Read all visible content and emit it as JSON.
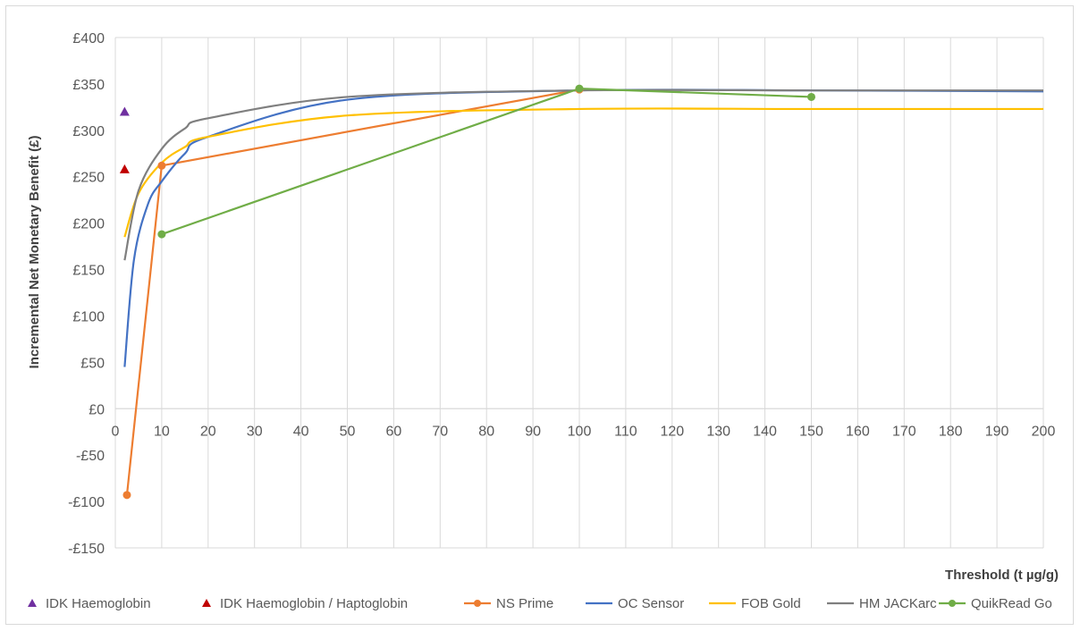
{
  "chart_data": {
    "type": "line",
    "title": "",
    "xlabel": "Threshold (t µg/g)",
    "ylabel": "Incremental Net Monetary Benefit (£)",
    "xlim": [
      0,
      200
    ],
    "ylim": [
      -150,
      400
    ],
    "x_ticks": [
      0,
      10,
      20,
      30,
      40,
      50,
      60,
      70,
      80,
      90,
      100,
      110,
      120,
      130,
      140,
      150,
      160,
      170,
      180,
      190,
      200
    ],
    "y_ticks": [
      -150,
      -100,
      -50,
      0,
      50,
      100,
      150,
      200,
      250,
      300,
      350,
      400
    ],
    "y_tick_labels": [
      "-£150",
      "-£100",
      "-£50",
      "£0",
      "£50",
      "£100",
      "£150",
      "£200",
      "£250",
      "£300",
      "£350",
      "£400"
    ],
    "grid": "vertical",
    "legend_position": "bottom",
    "series": [
      {
        "name": "IDK Haemoglobin",
        "color": "#7030a0",
        "style": "triangle-marker",
        "points": [
          [
            2,
            320
          ]
        ]
      },
      {
        "name": "IDK Haemoglobin / Haptoglobin",
        "color": "#c00000",
        "style": "triangle-marker",
        "points": [
          [
            2,
            258
          ]
        ]
      },
      {
        "name": "NS Prime",
        "color": "#ed7d31",
        "style": "line-markers",
        "points": [
          [
            2.5,
            -93
          ],
          [
            10,
            262
          ],
          [
            100,
            344
          ]
        ]
      },
      {
        "name": "OC Sensor",
        "color": "#4472c4",
        "style": "smooth-line",
        "points": [
          [
            2,
            45
          ],
          [
            4,
            160
          ],
          [
            7,
            220
          ],
          [
            10,
            245
          ],
          [
            15,
            275
          ],
          [
            20,
            293
          ],
          [
            50,
            333
          ],
          [
            100,
            343
          ],
          [
            150,
            343
          ],
          [
            200,
            342
          ]
        ]
      },
      {
        "name": "FOB Gold",
        "color": "#ffc000",
        "style": "smooth-line",
        "points": [
          [
            2,
            185
          ],
          [
            5,
            232
          ],
          [
            10,
            265
          ],
          [
            15,
            282
          ],
          [
            20,
            293
          ],
          [
            50,
            316
          ],
          [
            100,
            323
          ],
          [
            150,
            323
          ],
          [
            200,
            323
          ]
        ]
      },
      {
        "name": "HM JACKarc",
        "color": "#7f7f7f",
        "style": "smooth-line",
        "points": [
          [
            2,
            160
          ],
          [
            5,
            235
          ],
          [
            10,
            280
          ],
          [
            15,
            302
          ],
          [
            20,
            313
          ],
          [
            50,
            336
          ],
          [
            100,
            343
          ],
          [
            150,
            343
          ],
          [
            200,
            343
          ]
        ]
      },
      {
        "name": "QuikRead Go",
        "color": "#70ad47",
        "style": "line-markers",
        "points": [
          [
            10,
            188
          ],
          [
            100,
            345
          ],
          [
            150,
            336
          ]
        ]
      }
    ]
  }
}
